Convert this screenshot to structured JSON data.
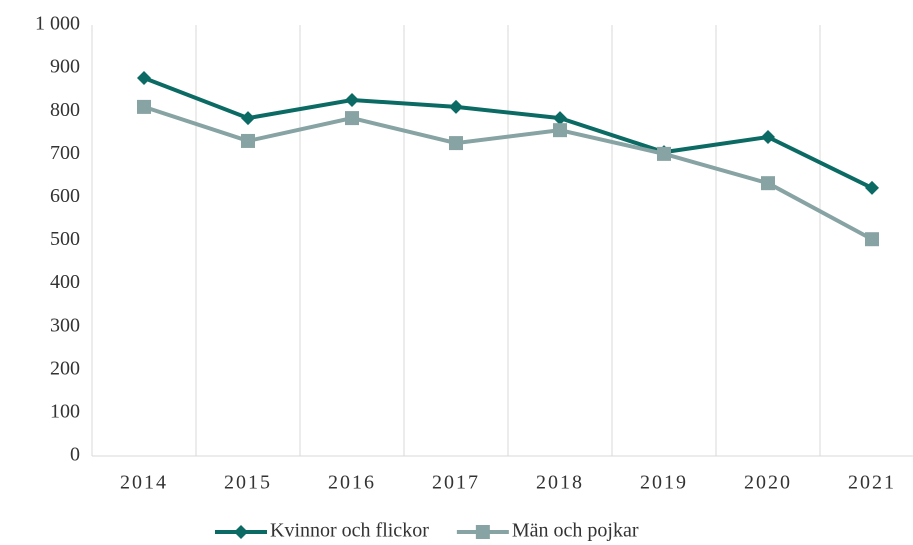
{
  "chart_data": {
    "type": "line",
    "categories": [
      "2014",
      "2015",
      "2016",
      "2017",
      "2018",
      "2019",
      "2020",
      "2021"
    ],
    "series": [
      {
        "name": "Kvinnor och flickor",
        "color": "#0b6b64",
        "marker": "diamond",
        "values": [
          877,
          784,
          826,
          810,
          784,
          705,
          740,
          622
        ]
      },
      {
        "name": "Män och pojkar",
        "color": "#87a3a3",
        "marker": "square",
        "values": [
          810,
          731,
          784,
          726,
          756,
          701,
          633,
          503
        ]
      }
    ],
    "ylim": [
      0,
      1000
    ],
    "yticks": [
      0,
      100,
      200,
      300,
      400,
      500,
      600,
      700,
      800,
      900,
      {
        "value": 1000,
        "label": "1 000"
      }
    ],
    "grid": "vertical",
    "legend": "bottom"
  }
}
